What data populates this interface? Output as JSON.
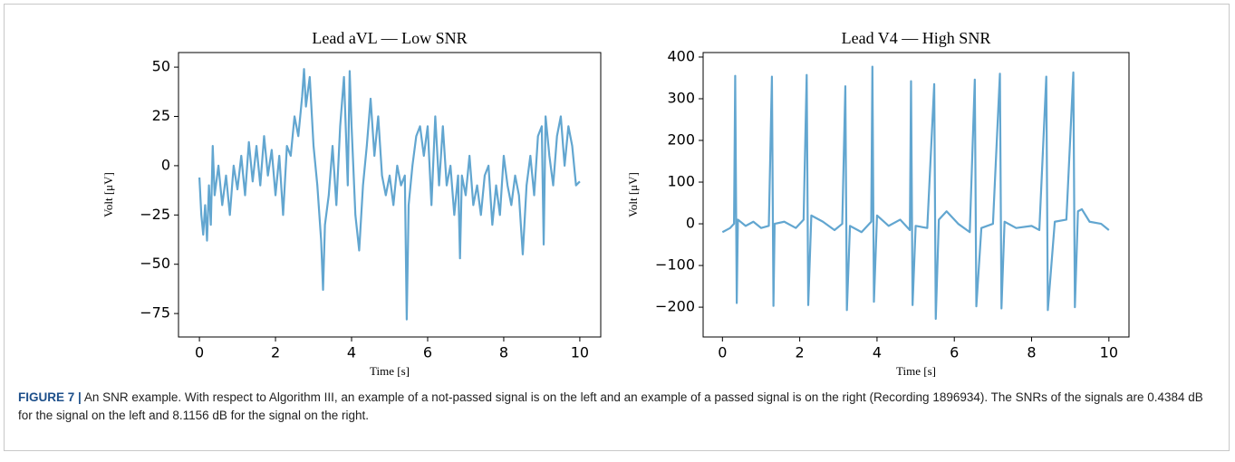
{
  "chart_data": [
    {
      "type": "line",
      "title": "Lead aVL — Low SNR",
      "xlabel": "Time [s]",
      "ylabel": "Volt [μV]",
      "xlim": [
        -0.55,
        10.55
      ],
      "ylim": [
        -86.9,
        57.4
      ],
      "xticks": [
        0,
        2,
        4,
        6,
        8,
        10
      ],
      "yticks": [
        50,
        25,
        0,
        {
          "value": -25,
          "label": "−25"
        },
        {
          "value": -50,
          "label": "−50"
        },
        {
          "value": -75,
          "label": "−75"
        }
      ],
      "x": [
        0.0,
        0.05,
        0.1,
        0.15,
        0.2,
        0.25,
        0.3,
        0.35,
        0.4,
        0.5,
        0.6,
        0.7,
        0.8,
        0.9,
        1.0,
        1.1,
        1.2,
        1.3,
        1.4,
        1.5,
        1.6,
        1.7,
        1.8,
        1.9,
        2.0,
        2.1,
        2.2,
        2.3,
        2.4,
        2.5,
        2.6,
        2.7,
        2.75,
        2.8,
        2.9,
        3.0,
        3.1,
        3.2,
        3.25,
        3.3,
        3.4,
        3.5,
        3.6,
        3.7,
        3.8,
        3.9,
        3.95,
        4.0,
        4.1,
        4.2,
        4.3,
        4.4,
        4.5,
        4.6,
        4.7,
        4.8,
        4.9,
        5.0,
        5.1,
        5.2,
        5.3,
        5.4,
        5.45,
        5.5,
        5.6,
        5.7,
        5.8,
        5.9,
        6.0,
        6.1,
        6.2,
        6.3,
        6.4,
        6.5,
        6.6,
        6.7,
        6.8,
        6.85,
        6.9,
        7.0,
        7.1,
        7.2,
        7.3,
        7.4,
        7.5,
        7.6,
        7.7,
        7.8,
        7.9,
        8.0,
        8.1,
        8.2,
        8.3,
        8.4,
        8.5,
        8.6,
        8.7,
        8.8,
        8.9,
        9.0,
        9.05,
        9.1,
        9.2,
        9.3,
        9.4,
        9.5,
        9.6,
        9.7,
        9.8,
        9.9,
        10.0
      ],
      "series": [
        {
          "color": "#62a6d0",
          "values": [
            -6,
            -25,
            -35,
            -20,
            -38,
            -10,
            -30,
            10,
            -15,
            0,
            -20,
            -5,
            -25,
            0,
            -12,
            5,
            -15,
            12,
            -8,
            10,
            -10,
            15,
            -5,
            8,
            -15,
            5,
            -25,
            10,
            5,
            25,
            15,
            35,
            49,
            30,
            45,
            10,
            -10,
            -38,
            -63,
            -30,
            -15,
            10,
            -20,
            20,
            45,
            -10,
            48,
            20,
            -25,
            -43,
            -10,
            10,
            34,
            5,
            25,
            -5,
            -15,
            -5,
            -20,
            0,
            -10,
            -5,
            -78,
            -20,
            0,
            15,
            20,
            5,
            20,
            -20,
            25,
            -10,
            20,
            -10,
            0,
            -25,
            -5,
            -47,
            -5,
            -15,
            5,
            -20,
            -10,
            -25,
            -5,
            0,
            -30,
            -10,
            -25,
            5,
            -10,
            -20,
            -5,
            -15,
            -45,
            -10,
            5,
            -15,
            15,
            20,
            -40,
            25,
            5,
            -10,
            15,
            25,
            0,
            20,
            10,
            -10,
            -8
          ]
        }
      ]
    },
    {
      "type": "line",
      "title": "Lead V4 — High SNR",
      "xlabel": "Time [s]",
      "ylabel": "Volt [μV]",
      "xlim": [
        -0.5,
        10.52
      ],
      "ylim": [
        -271.5,
        410.8
      ],
      "xticks": [
        0,
        2,
        4,
        6,
        8,
        10
      ],
      "yticks": [
        400,
        300,
        200,
        100,
        0,
        {
          "value": -100,
          "label": "−100"
        },
        {
          "value": -200,
          "label": "−200"
        }
      ],
      "x": [
        0,
        0.2,
        0.3,
        0.33,
        0.37,
        0.4,
        0.6,
        0.8,
        1.0,
        1.2,
        1.28,
        1.32,
        1.35,
        1.6,
        1.9,
        2.1,
        2.18,
        2.22,
        2.3,
        2.6,
        2.9,
        3.1,
        3.18,
        3.22,
        3.3,
        3.6,
        3.85,
        3.88,
        3.92,
        4.0,
        4.3,
        4.6,
        4.85,
        4.88,
        4.92,
        5.0,
        5.3,
        5.48,
        5.52,
        5.6,
        5.8,
        6.1,
        6.4,
        6.53,
        6.57,
        6.7,
        7.0,
        7.18,
        7.22,
        7.3,
        7.6,
        8.0,
        8.2,
        8.38,
        8.42,
        8.6,
        8.9,
        9.08,
        9.12,
        9.2,
        9.3,
        9.5,
        9.8,
        10.0
      ],
      "series": [
        {
          "color": "#62a6d0",
          "values": [
            -20,
            -10,
            0,
            355,
            -190,
            10,
            -5,
            5,
            -10,
            -5,
            353,
            -197,
            0,
            5,
            -10,
            10,
            357,
            -195,
            20,
            5,
            -15,
            0,
            330,
            -207,
            -5,
            -20,
            5,
            377,
            -187,
            20,
            -5,
            10,
            -15,
            342,
            -195,
            -5,
            -10,
            335,
            -228,
            10,
            30,
            0,
            -20,
            346,
            -198,
            -10,
            0,
            360,
            -203,
            5,
            -10,
            -5,
            -15,
            353,
            -207,
            5,
            10,
            363,
            -200,
            30,
            35,
            5,
            0,
            -15
          ]
        }
      ]
    }
  ],
  "caption": {
    "label": "FIGURE 7 |",
    "text": "An SNR example. With respect to Algorithm III, an example of a not-passed signal is on the left and an example of a passed signal is on the right (Recording 1896934). The SNRs of the signals are 0.4384 dB for the signal on the left and 8.1156 dB for the signal on the right."
  }
}
